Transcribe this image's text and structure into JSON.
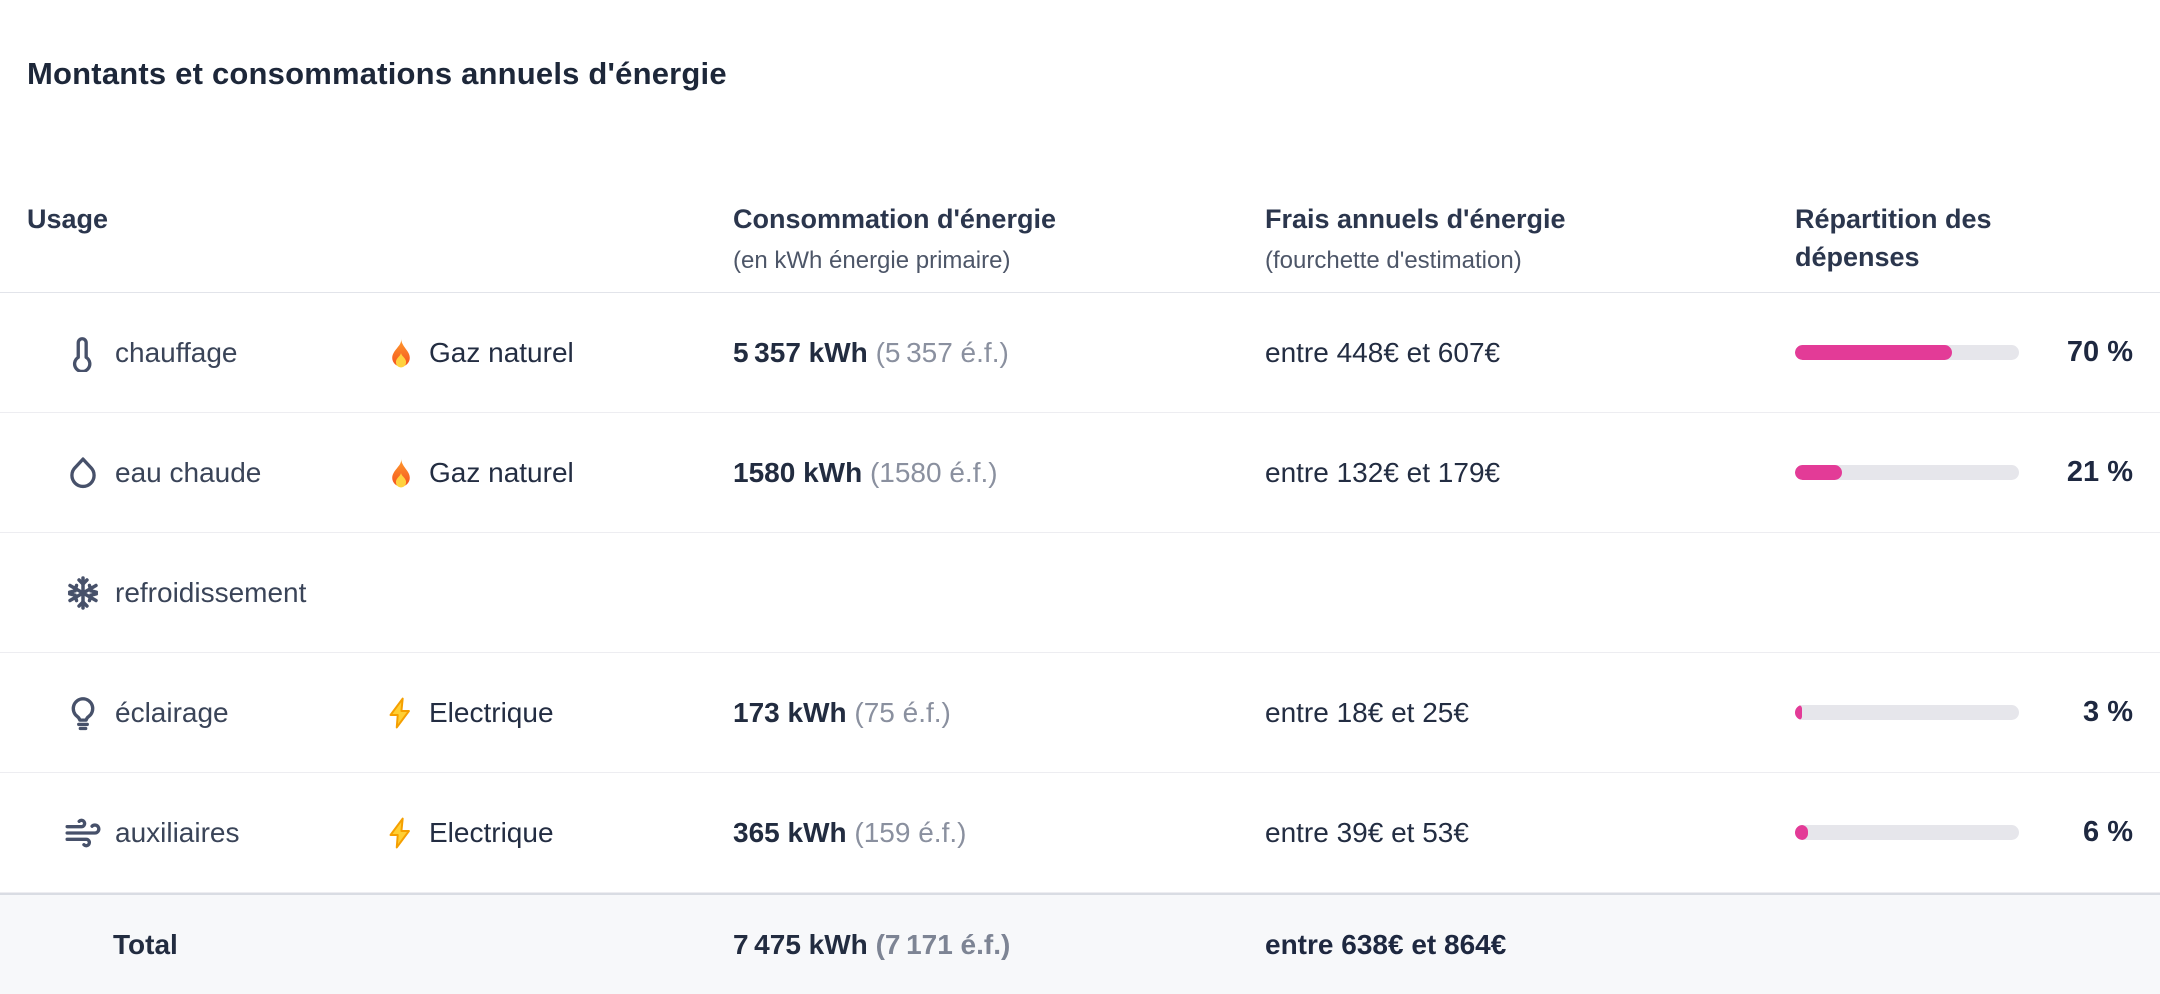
{
  "page": {
    "title": "Montants et consommations annuels d'énergie"
  },
  "colors": {
    "accent_pink": "#e33b97",
    "bar_track": "#e6e6eb",
    "heading_navy": "#1d2739",
    "total_row_bg": "#f7f8fa"
  },
  "table": {
    "columns": {
      "usage": {
        "label": "Usage"
      },
      "consumption": {
        "label": "Consommation d'énergie",
        "sublabel": "(en kWh énergie primaire)"
      },
      "cost": {
        "label": "Frais annuels d'énergie",
        "sublabel": "(fourchette d'estimation)"
      },
      "share": {
        "label": "Répartition des dépenses"
      }
    },
    "rows": [
      {
        "usage": "chauffage",
        "usage_icon": "thermometer-icon",
        "vector": "Gaz naturel",
        "vector_icon": "fire-icon",
        "consumption": "5 357 kWh",
        "consumption_ef": "(5 357 é.f.)",
        "cost": "entre 448€ et 607€",
        "share_pct": 70,
        "share_label": "70 %"
      },
      {
        "usage": "eau chaude",
        "usage_icon": "droplet-icon",
        "vector": "Gaz naturel",
        "vector_icon": "fire-icon",
        "consumption": "1580 kWh",
        "consumption_ef": "(1580 é.f.)",
        "cost": "entre 132€ et 179€",
        "share_pct": 21,
        "share_label": "21 %"
      },
      {
        "usage": "refroidissement",
        "usage_icon": "snowflake-icon",
        "vector": "",
        "vector_icon": null,
        "consumption": "",
        "consumption_ef": "",
        "cost": "",
        "share_pct": null,
        "share_label": ""
      },
      {
        "usage": "éclairage",
        "usage_icon": "lightbulb-icon",
        "vector": "Electrique",
        "vector_icon": "lightning-icon",
        "consumption": "173 kWh",
        "consumption_ef": "(75 é.f.)",
        "cost": "entre 18€ et 25€",
        "share_pct": 3,
        "share_label": "3 %"
      },
      {
        "usage": "auxiliaires",
        "usage_icon": "wind-icon",
        "vector": "Electrique",
        "vector_icon": "lightning-icon",
        "consumption": "365 kWh",
        "consumption_ef": "(159 é.f.)",
        "cost": "entre 39€ et 53€",
        "share_pct": 6,
        "share_label": "6 %"
      }
    ],
    "total": {
      "label": "Total",
      "consumption": "7 475 kWh",
      "consumption_ef": "(7 171 é.f.)",
      "cost": "entre 638€ et 864€"
    }
  }
}
